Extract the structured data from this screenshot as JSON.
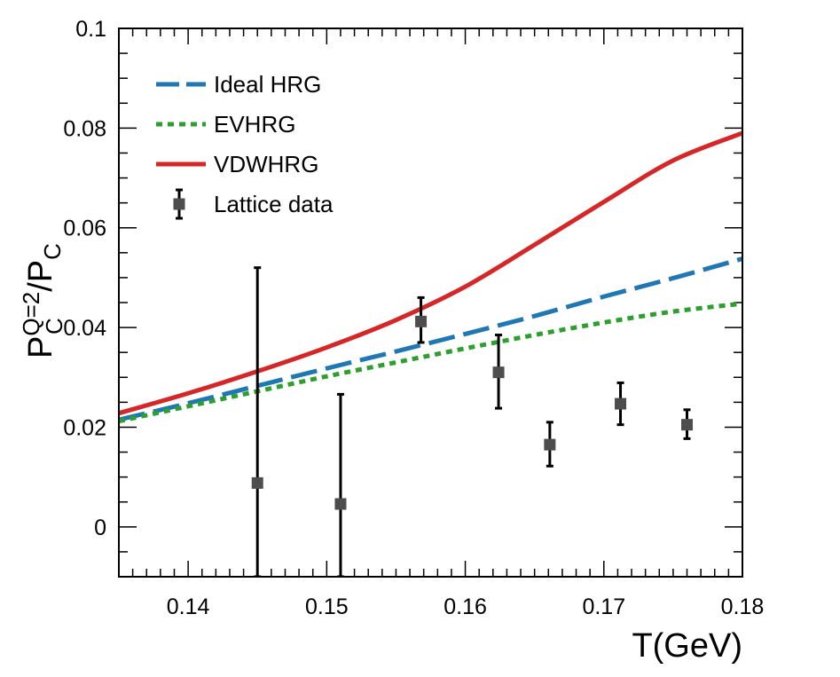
{
  "chart_data": {
    "type": "line",
    "xlabel": "T(GeV)",
    "ylabel": {
      "base": "P",
      "sub": "C",
      "sup": "Q=2",
      "slash": "/",
      "base2": "P",
      "sub2": "C"
    },
    "xlim": [
      0.135,
      0.18
    ],
    "ylim": [
      -0.01,
      0.1
    ],
    "xticks": [
      0.14,
      0.15,
      0.16,
      0.17,
      0.18
    ],
    "xtick_labels": [
      "0.14",
      "0.15",
      "0.16",
      "0.17",
      "0.18"
    ],
    "yticks": [
      0,
      0.02,
      0.04,
      0.06,
      0.08,
      0.1
    ],
    "ytick_labels": [
      "0",
      "0.02",
      "0.04",
      "0.06",
      "0.08",
      "0.1"
    ],
    "legend_position": "top-left",
    "series": [
      {
        "name": "Ideal HRG",
        "style": "dashed",
        "color": "#1f77b4",
        "x": [
          0.135,
          0.14,
          0.145,
          0.15,
          0.155,
          0.16,
          0.165,
          0.17,
          0.175,
          0.18
        ],
        "y": [
          0.0215,
          0.0248,
          0.0283,
          0.0318,
          0.0352,
          0.0387,
          0.0423,
          0.0462,
          0.0499,
          0.0538
        ]
      },
      {
        "name": "EVHRG",
        "style": "dotted",
        "color": "#2ca02c",
        "x": [
          0.135,
          0.14,
          0.145,
          0.15,
          0.155,
          0.16,
          0.165,
          0.17,
          0.175,
          0.18
        ],
        "y": [
          0.0212,
          0.0242,
          0.0272,
          0.0302,
          0.033,
          0.0358,
          0.0385,
          0.041,
          0.0432,
          0.0448
        ]
      },
      {
        "name": "VDWHRG",
        "style": "solid",
        "color": "#d62728",
        "x": [
          0.135,
          0.14,
          0.145,
          0.15,
          0.155,
          0.16,
          0.165,
          0.17,
          0.175,
          0.18
        ],
        "y": [
          0.0228,
          0.0268,
          0.0312,
          0.036,
          0.0415,
          0.0482,
          0.0566,
          0.0652,
          0.0735,
          0.079
        ]
      },
      {
        "name": "Lattice data",
        "style": "errorbar",
        "color": "#4d4d4d",
        "x": [
          0.145,
          0.151,
          0.1568,
          0.1624,
          0.1661,
          0.1712,
          0.176
        ],
        "y": [
          0.0088,
          0.0046,
          0.0412,
          0.031,
          0.0165,
          0.0247,
          0.0205
        ],
        "yerr_low": [
          0.0188,
          0.0146,
          0.0042,
          0.0072,
          0.0043,
          0.0042,
          0.0028
        ],
        "yerr_high": [
          0.0432,
          0.022,
          0.0048,
          0.0075,
          0.0045,
          0.0042,
          0.003
        ]
      }
    ]
  }
}
